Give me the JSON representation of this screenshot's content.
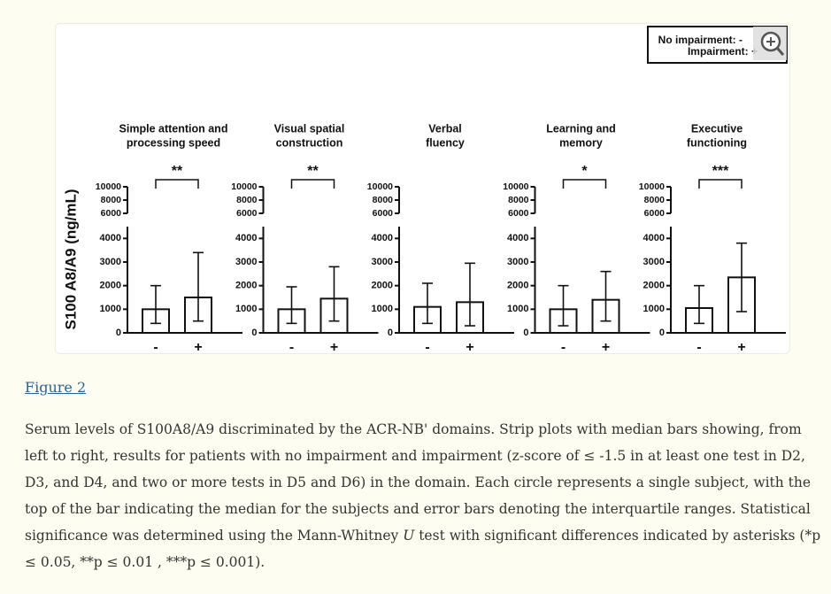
{
  "legend": {
    "no_impairment": "No impairment: -",
    "impairment": "Impairment: +"
  },
  "y_label": "S100 A8/A9 (ng/mL)",
  "chart_data": [
    {
      "type": "bar",
      "title": [
        "Simple attention and",
        "processing speed"
      ],
      "significance": "**",
      "categories": [
        "-",
        "+"
      ],
      "values": [
        1000,
        1500
      ],
      "q1": [
        400,
        500
      ],
      "q3": [
        2000,
        3400
      ],
      "ylim": [
        0,
        10000
      ],
      "ybreak": [
        4500,
        6000
      ],
      "yticks": [
        0,
        1000,
        2000,
        3000,
        4000,
        6000,
        8000,
        10000
      ]
    },
    {
      "type": "bar",
      "title": [
        "Visual spatial",
        "construction"
      ],
      "significance": "**",
      "categories": [
        "-",
        "+"
      ],
      "values": [
        1000,
        1450
      ],
      "q1": [
        400,
        500
      ],
      "q3": [
        1950,
        2800
      ],
      "ylim": [
        0,
        10000
      ],
      "ybreak": [
        4500,
        6000
      ],
      "yticks": [
        0,
        1000,
        2000,
        3000,
        4000,
        6000,
        8000,
        10000
      ]
    },
    {
      "type": "bar",
      "title": [
        "Verbal",
        "fluency"
      ],
      "categories": [
        "-",
        "+"
      ],
      "values": [
        1100,
        1300
      ],
      "q1": [
        400,
        300
      ],
      "q3": [
        2100,
        2950
      ],
      "ylim": [
        0,
        10000
      ],
      "ybreak": [
        4500,
        6000
      ],
      "yticks": [
        0,
        1000,
        2000,
        3000,
        4000,
        6000,
        8000,
        10000
      ]
    },
    {
      "type": "bar",
      "title": [
        "Learning and",
        "memory"
      ],
      "significance": "*",
      "categories": [
        "-",
        "+"
      ],
      "values": [
        1000,
        1400
      ],
      "q1": [
        300,
        500
      ],
      "q3": [
        2000,
        2600
      ],
      "ylim": [
        0,
        10000
      ],
      "ybreak": [
        4500,
        6000
      ],
      "yticks": [
        0,
        1000,
        2000,
        3000,
        4000,
        6000,
        8000,
        10000
      ]
    },
    {
      "type": "bar",
      "title": [
        "Executive",
        "functioning"
      ],
      "significance": "***",
      "categories": [
        "-",
        "+"
      ],
      "values": [
        1050,
        2350
      ],
      "q1": [
        400,
        900
      ],
      "q3": [
        2000,
        3800
      ],
      "ylim": [
        0,
        10000
      ],
      "ybreak": [
        4500,
        6000
      ],
      "yticks": [
        0,
        1000,
        2000,
        3000,
        4000,
        6000,
        8000,
        10000
      ]
    }
  ],
  "figure_link": "Figure 2",
  "caption": [
    "Serum levels of S100A8/A9 discriminated by the ACR-NB' domains. Strip plots with median bars showing, from left to right, results for patients with no impairment and impairment (z-score of ≤ -1.5 in at least one test in D2, D3, and D4, and two or more tests in D5 and D6) in the domain. Each circle represents a single subject, with the top of the bar indicating the median for the subjects and error bars denoting the interquartile ranges. Statistical significance was determined using the Mann-Whitney ",
    "U",
    " test with significant differences indicated by asterisks (*p ≤ 0.05, **p ≤ 0.01 , ***p ≤ 0.001)."
  ]
}
